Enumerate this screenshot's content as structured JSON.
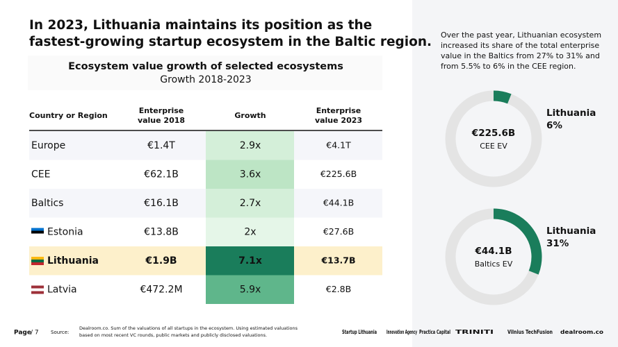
{
  "header": {
    "title_lines": [
      "In 2023, Lithuania maintains its position as the",
      "fastest-growing startup ecosystem in the Baltic region."
    ]
  },
  "table": {
    "title": "Ecosystem value growth of selected ecosystems",
    "subtitle": "Growth 2018-2023",
    "columns": [
      [
        "Country or Region"
      ],
      [
        "Enterprise",
        "value 2018"
      ],
      [
        "Growth"
      ],
      [
        "Enterprise",
        "value 2023"
      ]
    ],
    "rows": [
      {
        "cells": [
          "Europe",
          "€1.4T",
          "2.9x",
          "€4.1T"
        ],
        "row_color": "#f5f6fa",
        "growth_color": "#d4efd9"
      },
      {
        "cells": [
          "CEE",
          "€62.1B",
          "3.6x",
          "€225.6B"
        ],
        "row_color": "#ffffff",
        "growth_color": "#bde5c5"
      },
      {
        "cells": [
          "Baltics",
          "€16.1B",
          "2.7x",
          "€44.1B"
        ],
        "row_color": "#f5f6fa",
        "growth_color": "#d4efd9"
      },
      {
        "cells": [
          "Estonia",
          "€13.8B",
          "2x",
          "€27.6B"
        ],
        "row_color": "#ffffff",
        "growth_color": "#e5f6e8",
        "flag": [
          "#0072ce",
          "#000000",
          "#ffffff"
        ]
      },
      {
        "cells": [
          "Lithuania",
          "€1.9B",
          "7.1x",
          "€13.7B"
        ],
        "row_color": "#fdf0cb",
        "growth_color": "#1a7d5b",
        "bold": true,
        "flag": [
          "#fdb913",
          "#006a44",
          "#c1272d"
        ]
      },
      {
        "cells": [
          "Latvia",
          "€472.2M",
          "5.9x",
          "€2.8B"
        ],
        "row_color": "#ffffff",
        "growth_color": "#5fb68b",
        "flag": [
          "#9e3039",
          "#ffffff",
          "#9e3039"
        ]
      }
    ]
  },
  "sidebar": {
    "text_lines": [
      "Over the past year, Lithuanian ecosystem",
      "increased its share of the total enterprise",
      "value in the Baltics from 27% to 31% and",
      "from 5.5% to 6% in the CEE region."
    ],
    "donuts": [
      {
        "center_value": "€225.6B",
        "center_label": "CEE EV",
        "name": "Lithuania",
        "share": 6,
        "share_label": "6%"
      },
      {
        "center_value": "€44.1B",
        "center_label": "Baltics EV",
        "name": "Lithuania",
        "share": 31,
        "share_label": "31%"
      }
    ]
  },
  "footer": {
    "page": "Page",
    "page_total": "/ 7",
    "source_label": "Source:",
    "source_lines": [
      "Dealroom.co. Sum of the valuations of all startups in the ecosystem. Using estimated valuations",
      "based on most recent VC rounds, public markets and publicly disclosed valuations."
    ],
    "logos": [
      "Startup Lithuania",
      "Innovation Agency",
      "Practica Capital",
      "TRINITI",
      "Vilnius TechFusion",
      "dealroom.co"
    ]
  }
}
